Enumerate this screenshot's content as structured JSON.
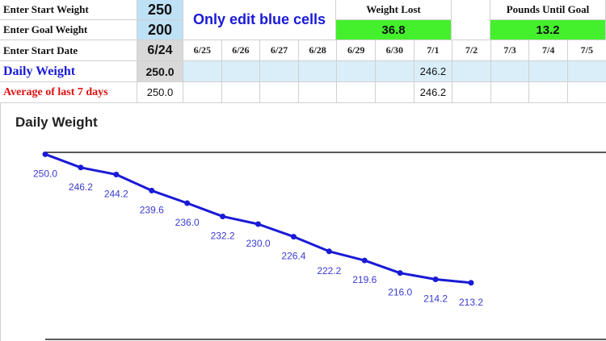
{
  "inputs": {
    "start_weight_label": "Enter Start Weight",
    "start_weight_value": "250",
    "goal_weight_label": "Enter Goal Weight",
    "goal_weight_value": "200",
    "start_date_label": "Enter Start Date",
    "start_date_value": "6/24"
  },
  "note": "Only edit blue cells",
  "summary": {
    "weight_lost_label": "Weight Lost",
    "weight_lost_value": "36.8",
    "pounds_until_goal_label": "Pounds Until Goal",
    "pounds_until_goal_value": "13.2"
  },
  "dates": [
    "6/25",
    "6/26",
    "6/27",
    "6/28",
    "6/29",
    "6/30",
    "7/1",
    "7/2",
    "7/3",
    "7/4",
    "7/5"
  ],
  "rows": {
    "daily_weight_label": "Daily Weight",
    "daily_weight_start": "250.0",
    "daily_weight_values": [
      "",
      "",
      "",
      "",
      "",
      "",
      "246.2",
      "",
      "",
      "",
      ""
    ],
    "average_label": "Average of last 7 days",
    "average_start": "250.0",
    "average_values": [
      "",
      "",
      "",
      "",
      "",
      "",
      "246.2",
      "",
      "",
      "",
      ""
    ]
  },
  "colors": {
    "input_blue": "#bfe1f5",
    "entry_blue": "#d9eef9",
    "result_green": "#44f02c",
    "note_text": "#1a1ad6",
    "daily_label": "#1a1ad6",
    "average_label": "#e01010",
    "series_line": "#1a1ad6"
  },
  "chart_data": {
    "type": "line",
    "title": "Daily Weight",
    "xlabel": "",
    "ylabel": "",
    "series": [
      {
        "values": [
          250.0,
          246.2,
          244.2,
          239.6,
          236.0,
          232.2,
          230.0,
          226.4,
          222.2,
          219.6,
          216.0,
          214.2,
          213.2
        ],
        "labels": [
          "250.0",
          "246.2",
          "244.2",
          "239.6",
          "236.0",
          "232.2",
          "230.0",
          "226.4",
          "222.2",
          "219.6",
          "216.0",
          "214.2",
          "213.2"
        ]
      }
    ],
    "ylim": [
      200,
      260
    ],
    "grid": false,
    "legend": "none"
  }
}
